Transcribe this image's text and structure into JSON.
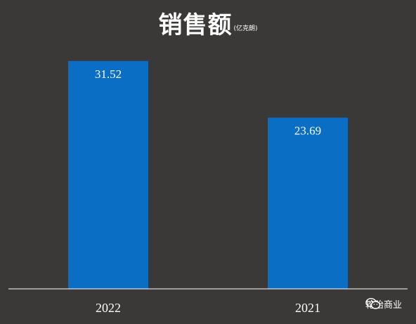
{
  "chart_data": {
    "type": "bar",
    "title": "销售额",
    "unit": "(亿克朗)",
    "categories": [
      "2022",
      "2021"
    ],
    "values": [
      31.52,
      23.69
    ],
    "value_labels": [
      "31.52",
      "23.69"
    ],
    "ylim": [
      0,
      35.2
    ],
    "grid": false,
    "legend": "none",
    "bar_color": "#0a6ec4",
    "background": "#3b3937",
    "axis_color": "#ffffff"
  },
  "watermark": {
    "icon": "wechat-icon",
    "text": "轮胎商业"
  }
}
